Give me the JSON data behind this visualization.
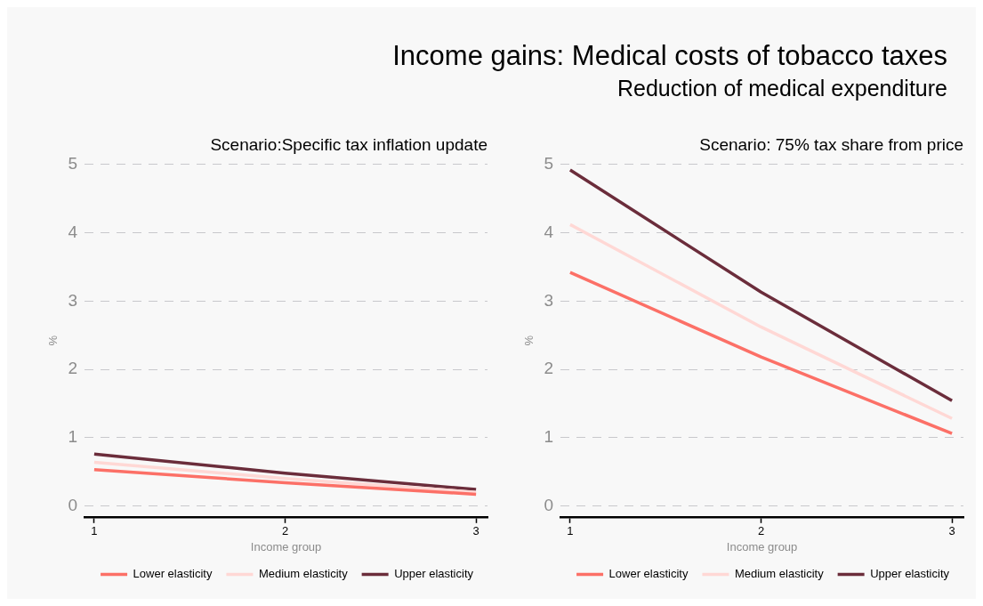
{
  "chart_data": [
    {
      "type": "other",
      "title": "Income gains: Medical costs of tobacco taxes",
      "subtitle": "Reduction of medical expenditure"
    },
    {
      "type": "line",
      "title": "Scenario:Specific tax inflation update",
      "xlabel": "Income group",
      "ylabel": "%",
      "x": [
        1,
        2,
        3
      ],
      "xlim": [
        0.95,
        3.06
      ],
      "xticks": [
        1,
        2,
        3
      ],
      "ylim": [
        -0.16,
        5
      ],
      "yticks": [
        0,
        1,
        2,
        3,
        4,
        5
      ],
      "grid": "y",
      "legend": "bottom",
      "series": [
        {
          "name": "Lower elasticity",
          "color": "#fc7067",
          "values": [
            0.53,
            0.34,
            0.17
          ]
        },
        {
          "name": "Medium elasticity",
          "color": "#ffd8d5",
          "values": [
            0.64,
            0.4,
            0.2
          ]
        },
        {
          "name": "Upper elasticity",
          "color": "#6b2d3b",
          "values": [
            0.76,
            0.48,
            0.24
          ]
        }
      ]
    },
    {
      "type": "line",
      "title": "Scenario: 75% tax share from price",
      "xlabel": "Income group",
      "ylabel": "%",
      "x": [
        1,
        2,
        3
      ],
      "xlim": [
        0.95,
        3.06
      ],
      "xticks": [
        1,
        2,
        3
      ],
      "ylim": [
        -0.16,
        5
      ],
      "yticks": [
        0,
        1,
        2,
        3,
        4,
        5
      ],
      "grid": "y",
      "legend": "bottom",
      "series": [
        {
          "name": "Lower elasticity",
          "color": "#fc7067",
          "values": [
            3.42,
            2.18,
            1.06
          ]
        },
        {
          "name": "Medium elasticity",
          "color": "#ffd8d5",
          "values": [
            4.12,
            2.62,
            1.28
          ]
        },
        {
          "name": "Upper elasticity",
          "color": "#6b2d3b",
          "values": [
            4.92,
            3.13,
            1.54
          ]
        }
      ]
    }
  ]
}
